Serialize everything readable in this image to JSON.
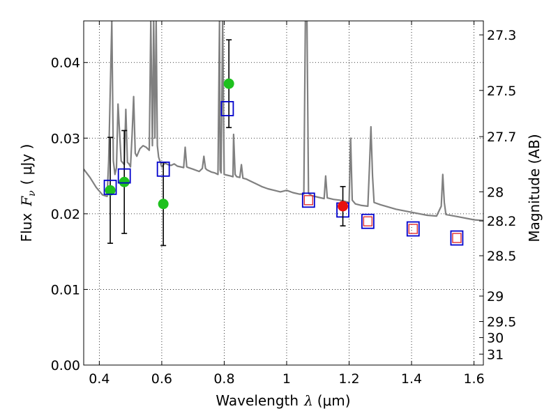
{
  "chart_data": {
    "type": "scatter",
    "xlabel_text": "Wavelength",
    "xlabel_symbol": "λ",
    "xlabel_unit": "(μm)",
    "ylabel_text": "Flux",
    "ylabel_symbol": "F",
    "ylabel_subscript": "ν",
    "ylabel_unit": "( μJy )",
    "y2label": "Magnitude (AB)",
    "xlim": [
      0.35,
      1.63
    ],
    "ylim": [
      0.0,
      0.0455
    ],
    "grid": true,
    "x_ticks": [
      {
        "value": 0.4,
        "label": "0.4"
      },
      {
        "value": 0.6,
        "label": "0.6"
      },
      {
        "value": 0.8,
        "label": "0.8"
      },
      {
        "value": 1.0,
        "label": "1"
      },
      {
        "value": 1.2,
        "label": "1.2"
      },
      {
        "value": 1.4,
        "label": "1.4"
      },
      {
        "value": 1.6,
        "label": "1.6"
      }
    ],
    "y_ticks": [
      {
        "value": 0.0,
        "label": "0.00"
      },
      {
        "value": 0.01,
        "label": "0.01"
      },
      {
        "value": 0.02,
        "label": "0.02"
      },
      {
        "value": 0.03,
        "label": "0.03"
      },
      {
        "value": 0.04,
        "label": "0.04"
      }
    ],
    "mag_ticks": [
      {
        "value": 27.3,
        "label": "27.3"
      },
      {
        "value": 27.5,
        "label": "27.5"
      },
      {
        "value": 27.7,
        "label": "27.7"
      },
      {
        "value": 28.0,
        "label": "28"
      },
      {
        "value": 28.2,
        "label": "28.2"
      },
      {
        "value": 28.5,
        "label": "28.5"
      },
      {
        "value": 29.0,
        "label": "29"
      },
      {
        "value": 29.5,
        "label": "29.5"
      },
      {
        "value": 30.0,
        "label": "30"
      },
      {
        "value": 31.0,
        "label": "31"
      }
    ],
    "series": [
      {
        "name": "model-spectrum",
        "kind": "line",
        "color": "#808080",
        "x": [
          0.35,
          0.37,
          0.39,
          0.41,
          0.425,
          0.43,
          0.44,
          0.445,
          0.45,
          0.455,
          0.46,
          0.47,
          0.48,
          0.485,
          0.49,
          0.495,
          0.5,
          0.505,
          0.51,
          0.515,
          0.52,
          0.53,
          0.54,
          0.55,
          0.56,
          0.565,
          0.57,
          0.574,
          0.578,
          0.582,
          0.586,
          0.59,
          0.6,
          0.61,
          0.62,
          0.63,
          0.64,
          0.65,
          0.66,
          0.67,
          0.675,
          0.68,
          0.685,
          0.7,
          0.72,
          0.73,
          0.735,
          0.74,
          0.745,
          0.75,
          0.76,
          0.77,
          0.78,
          0.785,
          0.787,
          0.79,
          0.795,
          0.8,
          0.81,
          0.82,
          0.828,
          0.83,
          0.835,
          0.84,
          0.85,
          0.855,
          0.86,
          0.87,
          0.88,
          0.9,
          0.92,
          0.94,
          0.96,
          0.98,
          1.0,
          1.02,
          1.04,
          1.055,
          1.06,
          1.065,
          1.07,
          1.08,
          1.1,
          1.12,
          1.125,
          1.13,
          1.15,
          1.17,
          1.19,
          1.2,
          1.205,
          1.21,
          1.22,
          1.24,
          1.26,
          1.265,
          1.27,
          1.275,
          1.28,
          1.3,
          1.35,
          1.4,
          1.45,
          1.48,
          1.495,
          1.5,
          1.505,
          1.51,
          1.55,
          1.6,
          1.63
        ],
        "y": [
          0.0259,
          0.0248,
          0.0235,
          0.0225,
          0.0223,
          0.027,
          0.0455,
          0.027,
          0.0252,
          0.0261,
          0.0345,
          0.027,
          0.0265,
          0.0338,
          0.0268,
          0.0266,
          0.0262,
          0.0305,
          0.0355,
          0.028,
          0.0276,
          0.0286,
          0.029,
          0.0288,
          0.0284,
          0.0455,
          0.029,
          0.0455,
          0.03,
          0.0455,
          0.029,
          0.0275,
          0.0262,
          0.0267,
          0.0265,
          0.0264,
          0.0266,
          0.0263,
          0.0262,
          0.0261,
          0.0288,
          0.0262,
          0.0261,
          0.0259,
          0.0256,
          0.026,
          0.0276,
          0.026,
          0.0258,
          0.0257,
          0.0255,
          0.0254,
          0.0252,
          0.0455,
          0.0258,
          0.0254,
          0.0455,
          0.0252,
          0.0251,
          0.025,
          0.0249,
          0.0305,
          0.0252,
          0.0249,
          0.0248,
          0.0265,
          0.0247,
          0.0246,
          0.0244,
          0.024,
          0.0236,
          0.0233,
          0.0231,
          0.0229,
          0.0231,
          0.0228,
          0.0226,
          0.0226,
          0.0455,
          0.0455,
          0.0227,
          0.0224,
          0.0222,
          0.022,
          0.025,
          0.0221,
          0.0219,
          0.0218,
          0.0216,
          0.0215,
          0.03,
          0.0218,
          0.0213,
          0.0211,
          0.021,
          0.026,
          0.0315,
          0.025,
          0.0215,
          0.0212,
          0.0206,
          0.0202,
          0.0198,
          0.0197,
          0.021,
          0.0252,
          0.0215,
          0.0199,
          0.0196,
          0.0192,
          0.0191
        ]
      },
      {
        "name": "observed-photometry",
        "kind": "points",
        "marker": "circle",
        "color": "#1ec11e",
        "x": [
          0.435,
          0.48,
          0.605,
          0.815
        ],
        "y": [
          0.0231,
          0.0242,
          0.0213,
          0.0372
        ],
        "err": [
          0.007,
          0.0068,
          0.0055,
          0.0058
        ]
      },
      {
        "name": "predicted-photometry",
        "kind": "points",
        "marker": "open-square",
        "color": "#0000cc",
        "x": [
          0.435,
          0.48,
          0.605,
          0.81,
          1.07,
          1.18,
          1.26,
          1.405,
          1.545
        ],
        "y": [
          0.0235,
          0.025,
          0.0259,
          0.0339,
          0.0218,
          0.0205,
          0.019,
          0.018,
          0.0168
        ]
      },
      {
        "name": "detection",
        "kind": "points",
        "marker": "circle",
        "color": "#e81010",
        "x": [
          1.18
        ],
        "y": [
          0.021
        ],
        "err": [
          0.0026
        ]
      },
      {
        "name": "upper-limit-markers",
        "kind": "points",
        "marker": "open-square-small",
        "color": "#e03030",
        "x": [
          1.07,
          1.26,
          1.405,
          1.545
        ],
        "y": [
          0.0218,
          0.019,
          0.018,
          0.0168
        ]
      }
    ]
  }
}
